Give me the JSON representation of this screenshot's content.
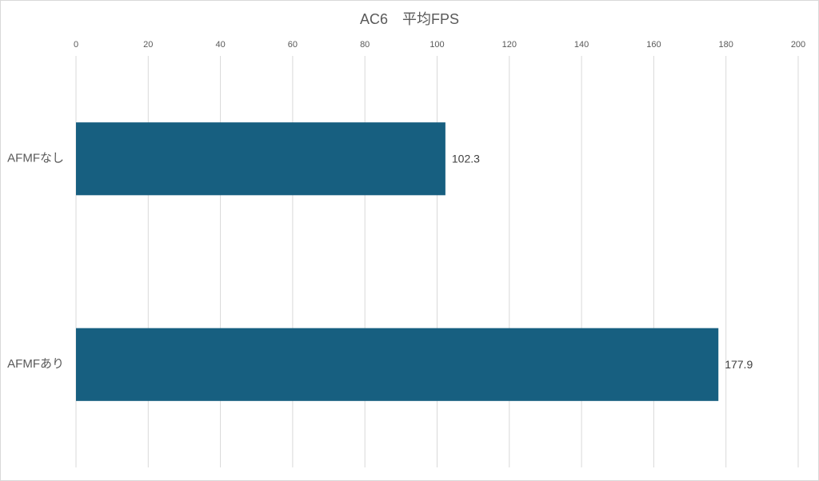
{
  "chart_data": {
    "type": "hbar",
    "title": "AC6　平均FPS",
    "categories": [
      "AFMFなし",
      "AFMFあり"
    ],
    "values": [
      102.3,
      177.9
    ],
    "color": "#175f80",
    "xlim": [
      0,
      200
    ],
    "xticks": [
      0,
      20,
      40,
      60,
      80,
      100,
      120,
      140,
      160,
      180,
      200
    ],
    "grid": true
  }
}
